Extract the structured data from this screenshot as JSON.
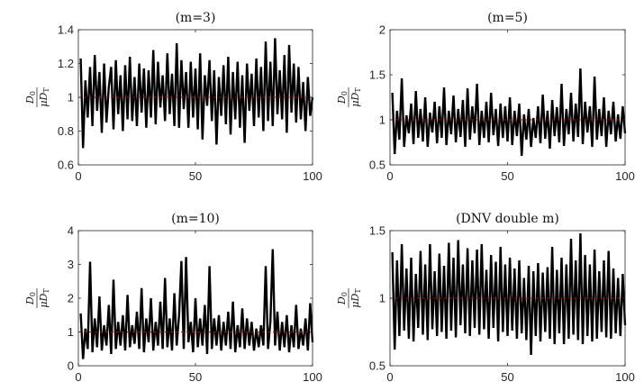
{
  "chart_data": [
    {
      "type": "line",
      "title": "(m=3)",
      "ylabel": {
        "numerator": "D",
        "numerator_sub": "0",
        "denominator": "μD",
        "denominator_sub": "T"
      },
      "xlim": [
        0,
        100
      ],
      "ylim": [
        0.6,
        1.4
      ],
      "xticks": [
        0,
        50,
        100
      ],
      "yticks": [
        0.6,
        0.8,
        1,
        1.2,
        1.4
      ],
      "grid": false,
      "reference_line": {
        "y": 1,
        "color": "#c00000",
        "style": "dashed"
      },
      "series": [
        {
          "color": "#000000",
          "style": "solid",
          "x": [
            1,
            2,
            3,
            4,
            5,
            6,
            7,
            8,
            9,
            10,
            11,
            12,
            13,
            14,
            15,
            16,
            17,
            18,
            19,
            20,
            21,
            22,
            23,
            24,
            25,
            26,
            27,
            28,
            29,
            30,
            31,
            32,
            33,
            34,
            35,
            36,
            37,
            38,
            39,
            40,
            41,
            42,
            43,
            44,
            45,
            46,
            47,
            48,
            49,
            50,
            51,
            52,
            53,
            54,
            55,
            56,
            57,
            58,
            59,
            60,
            61,
            62,
            63,
            64,
            65,
            66,
            67,
            68,
            69,
            70,
            71,
            72,
            73,
            74,
            75,
            76,
            77,
            78,
            79,
            80,
            81,
            82,
            83,
            84,
            85,
            86,
            87,
            88,
            89,
            90,
            91,
            92,
            93,
            94,
            95,
            96,
            97,
            98,
            99,
            100
          ],
          "y": [
            1.23,
            0.7,
            1.1,
            0.88,
            1.18,
            0.83,
            1.25,
            0.92,
            1.15,
            0.79,
            1.2,
            0.85,
            1.06,
            1.18,
            0.81,
            1.22,
            0.9,
            1.13,
            0.8,
            1.19,
            0.87,
            1.24,
            0.86,
            1.12,
            0.83,
            1.2,
            0.91,
            1.17,
            0.82,
            1.16,
            0.88,
            1.28,
            0.84,
            1.21,
            0.94,
            1.13,
            0.86,
            1.26,
            0.9,
            1.14,
            0.83,
            1.32,
            0.82,
            1.22,
            0.93,
            1.15,
            0.82,
            1.21,
            0.88,
            1.17,
            0.81,
            1.26,
            0.75,
            1.13,
            0.95,
            1.22,
            0.86,
            1.16,
            0.72,
            1.12,
            0.89,
            1.19,
            0.84,
            1.24,
            0.78,
            1.15,
            0.87,
            1.21,
            0.82,
            1.13,
            0.73,
            1.2,
            0.92,
            1.14,
            0.83,
            1.23,
            0.88,
            1.18,
            0.8,
            1.33,
            0.86,
            1.21,
            0.83,
            1.35,
            0.9,
            1.16,
            0.87,
            1.25,
            0.79,
            1.31,
            0.91,
            1.2,
            0.85,
            1.18,
            0.87,
            1.09,
            0.8,
            1.12,
            0.89,
            1.0
          ]
        }
      ]
    },
    {
      "type": "line",
      "title": "(m=5)",
      "ylabel": {
        "numerator": "D",
        "numerator_sub": "0",
        "denominator": "μD",
        "denominator_sub": "T"
      },
      "xlim": [
        0,
        100
      ],
      "ylim": [
        0.5,
        2
      ],
      "xticks": [
        0,
        50,
        100
      ],
      "yticks": [
        0.5,
        1,
        1.5,
        2
      ],
      "grid": false,
      "reference_line": {
        "y": 1,
        "color": "#c00000",
        "style": "dashed"
      },
      "series": [
        {
          "color": "#000000",
          "style": "solid",
          "x": [
            1,
            2,
            3,
            4,
            5,
            6,
            7,
            8,
            9,
            10,
            11,
            12,
            13,
            14,
            15,
            16,
            17,
            18,
            19,
            20,
            21,
            22,
            23,
            24,
            25,
            26,
            27,
            28,
            29,
            30,
            31,
            32,
            33,
            34,
            35,
            36,
            37,
            38,
            39,
            40,
            41,
            42,
            43,
            44,
            45,
            46,
            47,
            48,
            49,
            50,
            51,
            52,
            53,
            54,
            55,
            56,
            57,
            58,
            59,
            60,
            61,
            62,
            63,
            64,
            65,
            66,
            67,
            68,
            69,
            70,
            71,
            72,
            73,
            74,
            75,
            76,
            77,
            78,
            79,
            80,
            81,
            82,
            83,
            84,
            85,
            86,
            87,
            88,
            89,
            90,
            91,
            92,
            93,
            94,
            95,
            96,
            97,
            98,
            99,
            100
          ],
          "y": [
            1.3,
            0.62,
            1.1,
            0.78,
            1.46,
            0.7,
            1.05,
            0.85,
            1.18,
            0.73,
            1.32,
            0.8,
            1.12,
            0.76,
            1.25,
            0.7,
            1.08,
            0.86,
            1.2,
            0.74,
            1.15,
            0.8,
            1.36,
            0.72,
            1.1,
            0.84,
            1.27,
            0.75,
            1.12,
            0.81,
            1.22,
            0.7,
            1.35,
            0.78,
            1.15,
            0.85,
            1.4,
            0.72,
            1.1,
            0.8,
            1.2,
            0.75,
            1.3,
            0.83,
            1.12,
            0.71,
            1.18,
            0.8,
            1.15,
            0.76,
            1.25,
            0.72,
            1.1,
            0.82,
            1.18,
            0.6,
            1.06,
            0.78,
            1.12,
            0.7,
            1.02,
            0.8,
            1.15,
            0.74,
            1.28,
            0.79,
            1.1,
            0.68,
            1.22,
            0.82,
            1.14,
            0.75,
            1.4,
            0.71,
            1.12,
            0.84,
            1.3,
            0.76,
            1.18,
            0.81,
            1.57,
            0.73,
            1.2,
            0.86,
            1.15,
            0.7,
            1.48,
            0.78,
            1.12,
            0.82,
            1.25,
            0.7,
            1.1,
            0.84,
            1.2,
            0.76,
            1.06,
            0.79,
            1.15,
            0.85
          ]
        }
      ]
    },
    {
      "type": "line",
      "title": "(m=10)",
      "ylabel": {
        "numerator": "D",
        "numerator_sub": "0",
        "denominator": "μD",
        "denominator_sub": "T"
      },
      "xlim": [
        0,
        100
      ],
      "ylim": [
        0,
        4
      ],
      "xticks": [
        0,
        50,
        100
      ],
      "yticks": [
        0,
        1,
        2,
        3,
        4
      ],
      "grid": false,
      "reference_line": {
        "y": 1,
        "color": "#c00000",
        "style": "dashed"
      },
      "series": [
        {
          "color": "#000000",
          "style": "solid",
          "x": [
            1,
            2,
            3,
            4,
            5,
            6,
            7,
            8,
            9,
            10,
            11,
            12,
            13,
            14,
            15,
            16,
            17,
            18,
            19,
            20,
            21,
            22,
            23,
            24,
            25,
            26,
            27,
            28,
            29,
            30,
            31,
            32,
            33,
            34,
            35,
            36,
            37,
            38,
            39,
            40,
            41,
            42,
            43,
            44,
            45,
            46,
            47,
            48,
            49,
            50,
            51,
            52,
            53,
            54,
            55,
            56,
            57,
            58,
            59,
            60,
            61,
            62,
            63,
            64,
            65,
            66,
            67,
            68,
            69,
            70,
            71,
            72,
            73,
            74,
            75,
            76,
            77,
            78,
            79,
            80,
            81,
            82,
            83,
            84,
            85,
            86,
            87,
            88,
            89,
            90,
            91,
            92,
            93,
            94,
            95,
            96,
            97,
            98,
            99,
            100
          ],
          "y": [
            1.55,
            0.2,
            1.1,
            0.5,
            3.08,
            0.4,
            1.4,
            0.55,
            2.05,
            0.45,
            1.2,
            0.6,
            1.8,
            0.35,
            2.55,
            0.5,
            1.3,
            0.6,
            1.5,
            0.45,
            2.1,
            0.55,
            1.2,
            0.65,
            1.6,
            0.5,
            2.3,
            0.4,
            1.4,
            0.7,
            2.0,
            0.45,
            1.3,
            0.6,
            1.9,
            0.5,
            2.6,
            0.55,
            1.4,
            0.45,
            2.15,
            0.6,
            1.5,
            3.1,
            0.5,
            3.22,
            0.7,
            1.3,
            0.4,
            2.0,
            0.55,
            1.4,
            0.6,
            1.8,
            0.35,
            2.95,
            0.5,
            1.4,
            0.6,
            1.5,
            0.45,
            1.3,
            0.6,
            1.6,
            0.5,
            1.9,
            0.4,
            1.2,
            0.55,
            1.7,
            0.5,
            1.4,
            0.6,
            1.3,
            0.45,
            1.1,
            0.55,
            1.2,
            0.6,
            2.95,
            0.5,
            1.3,
            3.45,
            0.6,
            1.6,
            0.45,
            1.3,
            0.55,
            1.5,
            0.4,
            1.2,
            0.55,
            1.8,
            0.5,
            1.1,
            0.6,
            1.4,
            0.45,
            1.85,
            0.7
          ]
        }
      ]
    },
    {
      "type": "line",
      "title": "(DNV double m)",
      "ylabel": {
        "numerator": "D",
        "numerator_sub": "0",
        "denominator": "μD",
        "denominator_sub": "T"
      },
      "xlim": [
        0,
        100
      ],
      "ylim": [
        0.5,
        1.5
      ],
      "xticks": [
        0,
        50,
        100
      ],
      "yticks": [
        0.5,
        1,
        1.5
      ],
      "grid": false,
      "reference_line": {
        "y": 1,
        "color": "#c00000",
        "style": "dashed"
      },
      "series": [
        {
          "color": "#000000",
          "style": "solid",
          "x": [
            1,
            2,
            3,
            4,
            5,
            6,
            7,
            8,
            9,
            10,
            11,
            12,
            13,
            14,
            15,
            16,
            17,
            18,
            19,
            20,
            21,
            22,
            23,
            24,
            25,
            26,
            27,
            28,
            29,
            30,
            31,
            32,
            33,
            34,
            35,
            36,
            37,
            38,
            39,
            40,
            41,
            42,
            43,
            44,
            45,
            46,
            47,
            48,
            49,
            50,
            51,
            52,
            53,
            54,
            55,
            56,
            57,
            58,
            59,
            60,
            61,
            62,
            63,
            64,
            65,
            66,
            67,
            68,
            69,
            70,
            71,
            72,
            73,
            74,
            75,
            76,
            77,
            78,
            79,
            80,
            81,
            82,
            83,
            84,
            85,
            86,
            87,
            88,
            89,
            90,
            91,
            92,
            93,
            94,
            95,
            96,
            97,
            98,
            99,
            100
          ],
          "y": [
            1.34,
            0.62,
            1.28,
            0.72,
            1.4,
            0.76,
            1.22,
            0.7,
            1.3,
            0.68,
            1.18,
            0.78,
            1.35,
            0.73,
            1.25,
            0.69,
            1.4,
            0.77,
            1.2,
            0.72,
            1.33,
            0.75,
            1.24,
            0.7,
            1.41,
            0.76,
            1.3,
            0.71,
            1.43,
            0.8,
            1.25,
            0.74,
            1.37,
            0.72,
            1.28,
            0.78,
            1.36,
            0.73,
            1.4,
            0.77,
            1.21,
            0.7,
            1.32,
            0.78,
            1.27,
            0.68,
            1.38,
            0.75,
            1.25,
            0.72,
            1.3,
            0.76,
            1.22,
            0.7,
            1.28,
            0.74,
            1.15,
            0.69,
            1.24,
            0.58,
            1.2,
            0.72,
            1.26,
            0.68,
            1.19,
            0.75,
            1.23,
            0.7,
            1.38,
            0.66,
            1.21,
            0.74,
            1.3,
            0.66,
            1.25,
            0.7,
            1.44,
            0.73,
            1.28,
            0.69,
            1.48,
            0.66,
            1.32,
            0.72,
            1.25,
            0.68,
            1.36,
            0.7,
            1.2,
            0.75,
            1.28,
            0.71,
            1.35,
            0.7,
            1.22,
            0.74,
            1.15,
            0.72,
            1.18,
            0.8
          ]
        }
      ]
    }
  ]
}
